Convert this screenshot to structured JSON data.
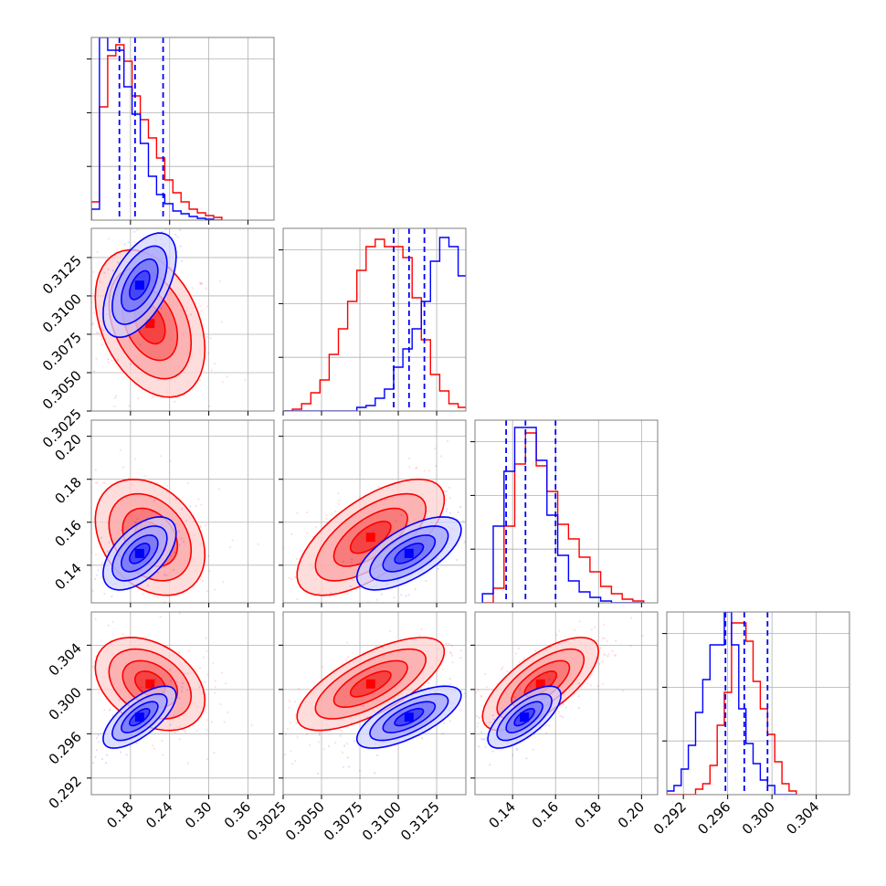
{
  "chart_data": {
    "type": "corner",
    "title": "",
    "parameters": [
      "",
      "",
      "",
      ""
    ],
    "series": [
      {
        "name": "",
        "color": "#ff0000",
        "means": [
          0.21,
          0.3082,
          0.153,
          0.3005
        ],
        "sds": [
          0.042,
          0.0024,
          0.0135,
          0.0021
        ],
        "correlations": {
          "1-0": -0.35,
          "2-0": -0.3,
          "2-1": 0.65,
          "3-0": -0.35,
          "3-1": 0.7,
          "3-2": 0.7
        }
      },
      {
        "name": "",
        "color": "#0000ff",
        "means": [
          0.194,
          0.3107,
          0.1455,
          0.2975
        ],
        "sds": [
          0.028,
          0.0017,
          0.0085,
          0.0014
        ],
        "correlations": {
          "1-0": 0.55,
          "2-0": 0.55,
          "2-1": 0.65,
          "3-0": 0.7,
          "3-1": 0.7,
          "3-2": 0.7
        }
      }
    ],
    "quantile_lines": [
      {
        "param": 0,
        "values": [
          0.163,
          0.187,
          0.23
        ]
      },
      {
        "param": 1,
        "values": [
          0.3097,
          0.3107,
          0.3117
        ]
      },
      {
        "param": 2,
        "values": [
          0.137,
          0.146,
          0.16
        ]
      },
      {
        "param": 3,
        "values": [
          0.2958,
          0.2975,
          0.2996
        ]
      }
    ],
    "histograms": [
      {
        "param": 0,
        "bin_start": 0.12,
        "bin_width": 0.0125,
        "red": [
          0.1,
          0.62,
          0.9,
          0.96,
          0.87,
          0.68,
          0.55,
          0.45,
          0.34,
          0.22,
          0.15,
          0.1,
          0.06,
          0.04,
          0.025,
          0.015
        ],
        "blue": [
          0.06,
          1.0,
          0.93,
          0.93,
          0.73,
          0.58,
          0.42,
          0.24,
          0.14,
          0.09,
          0.05,
          0.035,
          0.02,
          0.01,
          0.005,
          0.0
        ]
      },
      {
        "param": 1,
        "bin_start": 0.3025,
        "bin_width": 0.0006,
        "red": [
          0.0,
          0.01,
          0.04,
          0.1,
          0.17,
          0.31,
          0.45,
          0.6,
          0.77,
          0.9,
          0.94,
          0.9,
          0.9,
          0.84,
          0.62,
          0.39,
          0.2,
          0.11,
          0.04,
          0.02,
          0.0,
          0.0
        ],
        "blue": [
          0.0,
          0.0,
          0.0,
          0.0,
          0.0,
          0.0,
          0.0,
          0.0,
          0.02,
          0.03,
          0.07,
          0.12,
          0.24,
          0.34,
          0.45,
          0.6,
          0.82,
          0.95,
          0.9,
          0.74,
          0.27,
          0.02
        ]
      },
      {
        "param": 2,
        "bin_start": 0.126,
        "bin_width": 0.005,
        "red": [
          0.0,
          0.08,
          0.42,
          0.76,
          0.93,
          0.75,
          0.61,
          0.43,
          0.35,
          0.25,
          0.17,
          0.09,
          0.05,
          0.02,
          0.01
        ],
        "blue": [
          0.05,
          0.42,
          0.72,
          0.96,
          0.96,
          0.78,
          0.48,
          0.26,
          0.12,
          0.06,
          0.03,
          0.01,
          0.0,
          0.0,
          0.0
        ]
      },
      {
        "param": 3,
        "bin_start": 0.2905,
        "bin_width": 0.00065,
        "red": [
          0.0,
          0.0,
          0.0,
          0.0,
          0.03,
          0.06,
          0.16,
          0.38,
          0.56,
          0.94,
          0.94,
          0.84,
          0.62,
          0.47,
          0.33,
          0.18,
          0.06,
          0.02
        ],
        "blue": [
          0.02,
          0.05,
          0.14,
          0.27,
          0.45,
          0.63,
          0.82,
          0.82,
          1.0,
          0.82,
          0.47,
          0.28,
          0.17,
          0.08,
          0.05,
          0.0,
          0.0,
          0.0
        ]
      }
    ],
    "axes": [
      {
        "param": 0,
        "range": [
          0.12,
          0.4
        ],
        "ticks": [
          0.18,
          0.24,
          0.3,
          0.36
        ],
        "tick_labels": [
          "0.18",
          "0.24",
          "0.30",
          "0.36"
        ]
      },
      {
        "param": 1,
        "range": [
          0.3025,
          0.3144
        ],
        "ticks": [
          0.3025,
          0.305,
          0.3075,
          0.31,
          0.3125
        ],
        "tick_labels": [
          "0.3025",
          "0.3050",
          "0.3075",
          "0.3100",
          "0.3125"
        ]
      },
      {
        "param": 2,
        "range": [
          0.1225,
          0.2075
        ],
        "ticks": [
          0.14,
          0.16,
          0.18,
          0.2
        ],
        "tick_labels": [
          "0.14",
          "0.16",
          "0.18",
          "0.20"
        ]
      },
      {
        "param": 3,
        "range": [
          0.2905,
          0.307
        ],
        "ticks": [
          0.292,
          0.296,
          0.3,
          0.304
        ],
        "tick_labels": [
          "0.292",
          "0.296",
          "0.300",
          "0.304"
        ]
      }
    ],
    "grid": true
  }
}
